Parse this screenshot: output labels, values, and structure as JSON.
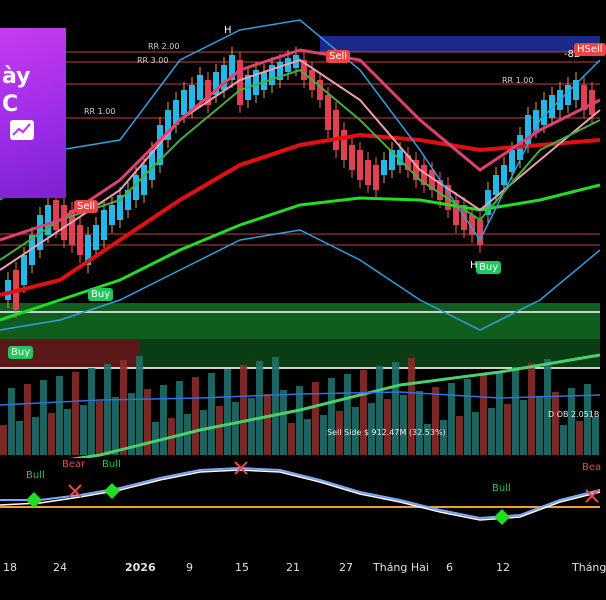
{
  "promo": {
    "line1": "ày",
    "line2": "C"
  },
  "signals": {
    "buy": "Buy",
    "sell": "Sell",
    "hsell": "HSell",
    "h_marker": "H"
  },
  "risk_reward": {
    "rr2": "RR 2.00",
    "rr3": "RR 3.00",
    "rr1": "RR 1.00",
    "rr_left": "RR 1.00",
    "price_tag": "-82"
  },
  "volume": {
    "sell_side": "Sell Side",
    "sell_side_value": "$ 912.47M (32.53%)",
    "dob": "D OB 2.051B"
  },
  "oscillator": {
    "bull": "Bull",
    "bear": "Bear",
    "bear_cut": "Bea"
  },
  "x_axis": {
    "labels": [
      "18",
      "24",
      "2026",
      "9",
      "15",
      "21",
      "27",
      "Tháng Hai",
      "6",
      "12",
      "Tháng"
    ]
  },
  "colors": {
    "buy": "#22c55e",
    "sell": "#ef4444",
    "promo": "#a832e6",
    "zone_green": "#0f5e1e",
    "zone_red": "#5a1818"
  }
}
